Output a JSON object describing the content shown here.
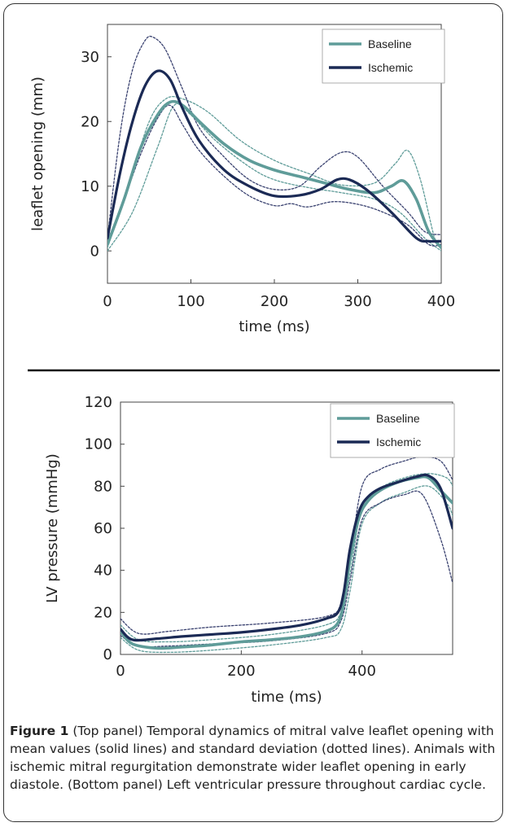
{
  "colors": {
    "baseline": "#5f9c99",
    "ischemic": "#1b2a55",
    "baseline_sd": "#5f9c99",
    "ischemic_sd": "#3a4270"
  },
  "caption": {
    "label": "Figure 1",
    "text": "(Top panel) Temporal dynamics of mitral valve leaflet opening with mean values (solid lines) and standard deviation (dotted lines). Animals with ischemic mitral regurgitation demonstrate wider leaflet opening in early diastole. (Bottom panel) Left ventricular pressure throughout cardiac cycle."
  },
  "chart_data": [
    {
      "type": "line",
      "xlabel": "time (ms)",
      "ylabel": "leaflet opening (mm)",
      "xlim": [
        0,
        400
      ],
      "ylim": [
        -5,
        35
      ],
      "xticks": [
        0,
        100,
        200,
        300,
        400
      ],
      "yticks": [
        0,
        10,
        20,
        30
      ],
      "legend": "top-right",
      "series": [
        {
          "name": "Baseline",
          "style": "solid",
          "color_key": "baseline",
          "x": [
            0,
            20,
            40,
            60,
            75,
            90,
            110,
            140,
            170,
            200,
            230,
            260,
            290,
            320,
            340,
            355,
            370,
            385,
            400
          ],
          "y": [
            1,
            8,
            16,
            21,
            23,
            22.5,
            20,
            16.5,
            14,
            12.5,
            11.5,
            10.5,
            9.5,
            9,
            10,
            10.8,
            8,
            3,
            0.5
          ]
        },
        {
          "name": "Ischemic",
          "style": "solid",
          "color_key": "ischemic",
          "x": [
            0,
            15,
            30,
            45,
            60,
            75,
            90,
            110,
            140,
            170,
            200,
            230,
            255,
            275,
            290,
            310,
            340,
            370,
            385,
            400
          ],
          "y": [
            2,
            12,
            20,
            25.5,
            27.8,
            26.5,
            22,
            17,
            12.5,
            10,
            8.5,
            8.6,
            9.5,
            11,
            11,
            9.5,
            6,
            2,
            1.5,
            1.5
          ]
        },
        {
          "style": "dotted",
          "color_key": "baseline_sd",
          "x": [
            0,
            25,
            50,
            70,
            90,
            120,
            160,
            200,
            240,
            280,
            320,
            345,
            360,
            375,
            392,
            400
          ],
          "y": [
            0.5,
            10,
            20,
            23.5,
            23.5,
            21.5,
            17,
            14,
            12,
            10.2,
            10.5,
            13.5,
            15.5,
            11,
            2,
            0.5
          ]
        },
        {
          "style": "dotted",
          "color_key": "baseline_sd",
          "x": [
            0,
            30,
            60,
            80,
            100,
            130,
            170,
            200,
            240,
            280,
            320,
            350,
            380,
            400
          ],
          "y": [
            0,
            6,
            16,
            22.5,
            21,
            17,
            13,
            11,
            9.8,
            9,
            8,
            6,
            2,
            0
          ]
        },
        {
          "style": "dotted",
          "color_key": "ischemic_sd",
          "x": [
            0,
            15,
            30,
            45,
            55,
            70,
            90,
            110,
            140,
            170,
            200,
            230,
            255,
            280,
            300,
            330,
            360,
            380,
            400
          ],
          "y": [
            2,
            18,
            28,
            32.5,
            33,
            31,
            25,
            19,
            14.5,
            11,
            9.5,
            10,
            13,
            15.2,
            14.5,
            10,
            6,
            3,
            2.5
          ]
        },
        {
          "style": "dotted",
          "color_key": "ischemic_sd",
          "x": [
            0,
            20,
            40,
            60,
            75,
            90,
            110,
            140,
            170,
            200,
            220,
            240,
            270,
            300,
            330,
            360,
            385,
            400
          ],
          "y": [
            1.5,
            8,
            15,
            20.5,
            22.5,
            19.5,
            15.5,
            11.5,
            8.5,
            7,
            7.3,
            6.8,
            7.6,
            7.2,
            6,
            4,
            1,
            1
          ]
        }
      ]
    },
    {
      "type": "line",
      "xlabel": "time (ms)",
      "ylabel": "LV pressure (mmHg)",
      "xlim": [
        0,
        550
      ],
      "ylim": [
        0,
        120
      ],
      "xticks": [
        0,
        200,
        400
      ],
      "yticks": [
        0,
        20,
        40,
        60,
        80,
        100,
        120
      ],
      "legend": "top-right",
      "series": [
        {
          "name": "Baseline",
          "style": "solid",
          "color_key": "baseline",
          "x": [
            0,
            20,
            60,
            100,
            150,
            200,
            250,
            300,
            340,
            360,
            370,
            380,
            395,
            410,
            430,
            460,
            490,
            510,
            530,
            550
          ],
          "y": [
            11,
            5,
            3,
            3.5,
            4.5,
            6,
            7,
            8.5,
            11,
            15,
            25,
            45,
            65,
            73,
            78,
            82,
            84,
            84,
            78,
            72
          ]
        },
        {
          "name": "Ischemic",
          "style": "solid",
          "color_key": "ischemic",
          "x": [
            0,
            20,
            60,
            100,
            150,
            200,
            250,
            300,
            340,
            360,
            370,
            380,
            395,
            410,
            430,
            460,
            490,
            510,
            530,
            550
          ],
          "y": [
            12,
            7,
            7.5,
            8.5,
            9.5,
            10.5,
            12,
            14,
            17,
            20,
            30,
            50,
            68,
            75,
            79,
            82,
            84.5,
            85,
            79,
            60
          ]
        },
        {
          "style": "dotted",
          "color_key": "baseline_sd",
          "x": [
            0,
            30,
            80,
            150,
            250,
            340,
            365,
            380,
            400,
            430,
            470,
            510,
            540,
            550
          ],
          "y": [
            14,
            7,
            6,
            7,
            9.5,
            14,
            20,
            38,
            70,
            79,
            84,
            86,
            84,
            80
          ]
        },
        {
          "style": "dotted",
          "color_key": "baseline_sd",
          "x": [
            0,
            30,
            80,
            150,
            250,
            340,
            365,
            380,
            400,
            430,
            470,
            510,
            540,
            550
          ],
          "y": [
            8,
            2,
            1,
            2,
            4.5,
            8,
            12,
            30,
            62,
            72,
            77,
            80,
            72,
            66
          ]
        },
        {
          "style": "dotted",
          "color_key": "ischemic_sd",
          "x": [
            0,
            30,
            80,
            150,
            250,
            340,
            365,
            380,
            400,
            430,
            470,
            500,
            530,
            550
          ],
          "y": [
            17,
            10,
            11,
            13,
            15,
            18,
            24,
            45,
            80,
            88,
            92,
            94,
            92,
            83
          ]
        },
        {
          "style": "dotted",
          "color_key": "ischemic_sd",
          "x": [
            0,
            30,
            80,
            150,
            250,
            340,
            365,
            380,
            400,
            430,
            470,
            500,
            530,
            550
          ],
          "y": [
            9,
            4,
            4,
            5,
            6.5,
            10,
            16,
            35,
            64,
            72,
            76,
            76,
            55,
            34
          ]
        }
      ]
    }
  ]
}
